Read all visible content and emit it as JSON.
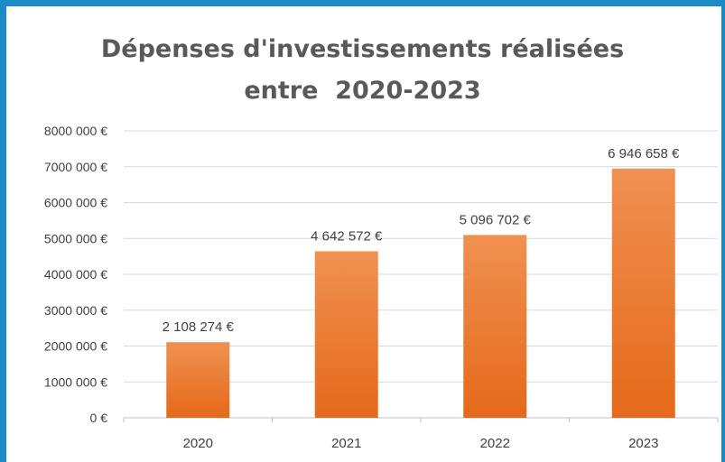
{
  "title": {
    "line1": "Dépenses d'investissements réalisées",
    "line2": "entre  2020-2023"
  },
  "colors": {
    "frame": "#1a8bc7",
    "bar_top": "#f09152",
    "bar_bottom": "#e5691a",
    "grid": "#d9d9d9",
    "text": "#404040",
    "title": "#595959"
  },
  "chart_data": {
    "type": "bar",
    "title": "Dépenses d'investissements réalisées entre  2020-2023",
    "categories": [
      "2020",
      "2021",
      "2022",
      "2023"
    ],
    "values": [
      2108274,
      4642572,
      5096702,
      6946658
    ],
    "value_labels": [
      "2 108 274 €",
      "4 642 572 €",
      "5 096 702 €",
      "6 946 658 €"
    ],
    "ylim": [
      0,
      8000000
    ],
    "y_ticks": [
      0,
      1000000,
      2000000,
      3000000,
      4000000,
      5000000,
      6000000,
      7000000,
      8000000
    ],
    "y_tick_labels": [
      "0 €",
      "1000 000 €",
      "2000 000 €",
      "3000 000 €",
      "4000 000 €",
      "5000 000 €",
      "6000 000 €",
      "7000 000 €",
      "8000 000 €"
    ],
    "grid": true,
    "legend": "none",
    "xlabel": "",
    "ylabel": ""
  }
}
